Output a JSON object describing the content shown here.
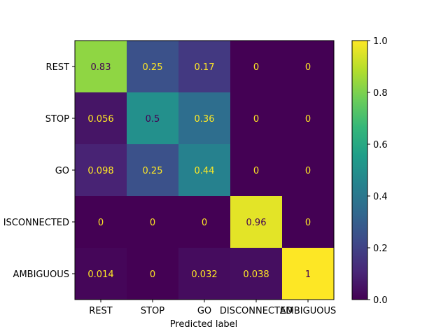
{
  "chart_data": {
    "type": "heatmap",
    "title": "",
    "xlabel": "Predicted label",
    "ylabel": "",
    "x_categories": [
      "REST",
      "STOP",
      "GO",
      "DISCONNECTED",
      "AMBIGUOUS"
    ],
    "y_categories": [
      "REST",
      "STOP",
      "GO",
      "DISCONNECTED",
      "AMBIGUOUS"
    ],
    "y_tick_labels_visible": [
      "REST",
      "STOP",
      "GO",
      "ISCONNECTED",
      "AMBIGUOUS"
    ],
    "values": [
      [
        0.83,
        0.25,
        0.17,
        0,
        0
      ],
      [
        0.056,
        0.5,
        0.36,
        0,
        0
      ],
      [
        0.098,
        0.25,
        0.44,
        0,
        0
      ],
      [
        0,
        0,
        0,
        0.96,
        0
      ],
      [
        0.014,
        0,
        0.032,
        0.038,
        1
      ]
    ],
    "labels": [
      [
        "0.83",
        "0.25",
        "0.17",
        "0",
        "0"
      ],
      [
        "0.056",
        "0.5",
        "0.36",
        "0",
        "0"
      ],
      [
        "0.098",
        "0.25",
        "0.44",
        "0",
        "0"
      ],
      [
        "0",
        "0",
        "0",
        "0.96",
        "0"
      ],
      [
        "0.014",
        "0",
        "0.032",
        "0.038",
        "1"
      ]
    ],
    "colormap": "viridis",
    "colorbar": {
      "range": [
        0.0,
        1.0
      ],
      "ticks": [
        "0.0",
        "0.2",
        "0.4",
        "0.6",
        "0.8",
        "1.0"
      ],
      "placement": "right"
    },
    "grid": false,
    "text_color_light": "#fde725",
    "text_color_dark": "#440154"
  }
}
